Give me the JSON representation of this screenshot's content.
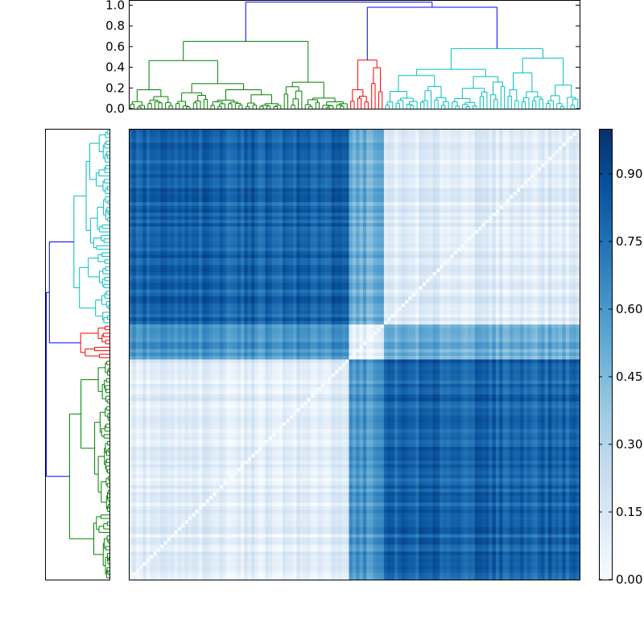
{
  "chart_data": [
    {
      "type": "heatmap",
      "title": "",
      "xlabel": "",
      "ylabel": "",
      "colormap": "Blues",
      "value_range": [
        0.0,
        1.0
      ],
      "axis_ticks_shown": false,
      "cluster_order": [
        "cyan",
        "red",
        "green"
      ],
      "cluster_sizes": [
        56,
        10,
        63
      ],
      "block_distance_matrix": [
        [
          0.12,
          0.5,
          0.8
        ],
        [
          0.5,
          0.08,
          0.6
        ],
        [
          0.8,
          0.6,
          0.1
        ]
      ],
      "diagonal_value": 0.0,
      "orientation": "rows top-to-bottom: green, red, cyan; columns left-to-right: green, red, cyan"
    },
    {
      "type": "dendrogram",
      "position": "top",
      "yticks": [
        "0.0",
        "0.2",
        "0.4",
        "0.6",
        "0.8",
        "1.0"
      ],
      "ylim": [
        0.0,
        1.05
      ],
      "clusters": [
        {
          "name": "green",
          "color": "#008000",
          "merge_height": 0.65
        },
        {
          "name": "red",
          "color": "#ff0000",
          "merge_height": 0.47
        },
        {
          "name": "cyan",
          "color": "#00bfbf",
          "merge_height": 0.58
        }
      ],
      "link_color": "#0000ff",
      "root_height": 1.03,
      "red_cyan_merge_height": 0.98
    },
    {
      "type": "dendrogram",
      "position": "left",
      "order_top_to_bottom": [
        "cyan",
        "red",
        "green"
      ]
    },
    {
      "type": "colorbar",
      "ticks": [
        "0.00",
        "0.15",
        "0.30",
        "0.45",
        "0.60",
        "0.75",
        "0.90"
      ],
      "range": [
        0.0,
        1.0
      ]
    }
  ]
}
